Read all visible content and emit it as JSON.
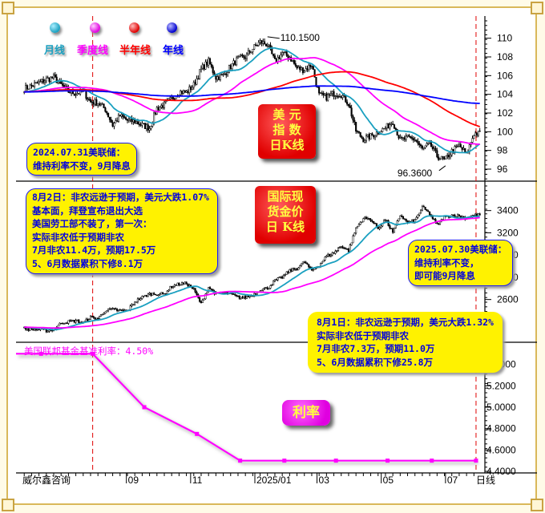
{
  "legend": [
    {
      "label": "月线",
      "color": "#1aa0c0"
    },
    {
      "label": "季度线",
      "color": "#ff00ff"
    },
    {
      "label": "半年线",
      "color": "#ff0000"
    },
    {
      "label": "年线",
      "color": "#0000ff"
    }
  ],
  "dxy_stamp": [
    "美  元",
    "指  数",
    "日K线"
  ],
  "gold_stamp": [
    "国际现",
    "货金价",
    "日 K线"
  ],
  "rate_stamp": "利率",
  "rate_title": "美国联邦基金基准利率：4.50%",
  "notes": {
    "fed_2024": [
      "2024.07.31美联储：",
      "维持利率不变，9月降息"
    ],
    "aug2": [
      "8月2日：非农远逊于预期，美元大跌1.07%",
      "基本面，拜登宣布退出大选",
      "美国劳工部不装了，第一次：",
      "实际非农低于预期非农",
      "7月非农11.4万，预期17.5万",
      "5、6月数据累积下修8.1万"
    ],
    "fed_2025": [
      "2025.07.30美联储：",
      "维持利率不变，",
      "即可能9月降息"
    ],
    "aug1": [
      "8月1日：非农远逊于预期，美元大跌1.32%",
      "实际非农低于预期非农",
      "7月非农7.3万，预期11.0万",
      "5、6月数据累积下修25.8万"
    ]
  },
  "footer": {
    "brand": "威尔鑫咨询",
    "period": "日线"
  },
  "colors": {
    "ma_month": "#1aa0c0",
    "ma_quarter": "#ff00ff",
    "ma_half": "#ff0000",
    "ma_year": "#0000ff",
    "rate": "#ff00ff",
    "event_line": "#e00000",
    "note_bg": "#fff200",
    "note_text": "#0000e0"
  },
  "chart_data": [
    {
      "type": "candlestick",
      "x_start": "2024-05-27",
      "x_step": "weekly",
      "weekly_close": [
        104.6,
        104.9,
        105.2,
        105.6,
        105.8,
        105.0,
        104.3,
        104.1,
        104.3,
        103.2,
        103.1,
        102.4,
        100.7,
        101.7,
        101.2,
        101.1,
        100.7,
        100.4,
        102.5,
        102.9,
        103.5,
        104.3,
        104.2,
        105.0,
        106.7,
        107.5,
        105.8,
        106.0,
        107.0,
        107.8,
        108.0,
        108.9,
        109.6,
        109.3,
        107.5,
        108.4,
        108.0,
        106.8,
        106.6,
        107.2,
        103.9,
        103.7,
        104.1,
        104.0,
        103.0,
        100.1,
        99.2,
        99.5,
        100.0,
        100.4,
        101.1,
        99.1,
        99.3,
        99.2,
        98.1,
        98.7,
        97.4,
        96.9,
        97.9,
        98.5,
        97.6,
        99.8
      ],
      "annotations": [
        {
          "text": "110.1500",
          "date": "2025-01-13",
          "value": 110.15
        },
        {
          "text": "96.3600",
          "date": "2025-07-01",
          "value": 96.36
        }
      ],
      "moving_averages": [
        "月线",
        "季度线",
        "半年线",
        "年线"
      ],
      "yticks": [
        96,
        98,
        100,
        102,
        104,
        106,
        108,
        110
      ],
      "ylim": [
        94.8,
        112.2
      ]
    },
    {
      "type": "candlestick",
      "x_start": "2024-05-27",
      "x_step": "weekly",
      "weekly_close": [
        2340,
        2330,
        2330,
        2320,
        2330,
        2390,
        2400,
        2410,
        2390,
        2440,
        2430,
        2500,
        2510,
        2500,
        2500,
        2580,
        2620,
        2650,
        2650,
        2650,
        2720,
        2740,
        2745,
        2690,
        2560,
        2710,
        2650,
        2660,
        2650,
        2620,
        2620,
        2640,
        2690,
        2700,
        2770,
        2800,
        2860,
        2880,
        2940,
        2860,
        2910,
        2990,
        3020,
        3080,
        3040,
        3240,
        3330,
        3320,
        3240,
        3320,
        3200,
        3360,
        3290,
        3310,
        3430,
        3370,
        3270,
        3340,
        3360,
        3350,
        3330,
        3360
      ],
      "moving_averages": [
        "月线",
        "季度线"
      ],
      "yticks": [
        2600,
        2800,
        3000,
        3200,
        3400
      ],
      "ylim": [
        2230,
        3650
      ]
    },
    {
      "type": "line",
      "x": [
        "2024-06-12",
        "2024-07-31",
        "2024-09-18",
        "2024-11-07",
        "2024-12-18",
        "2025-01-29",
        "2025-03-19",
        "2025-05-07",
        "2025-06-18",
        "2025-07-30"
      ],
      "y": [
        5.5,
        5.5,
        5.0,
        4.75,
        4.5,
        4.5,
        4.5,
        4.5,
        4.5,
        4.5
      ],
      "yticks": [
        "4.4000",
        "4.6000",
        "4.8000",
        "5.0000",
        "5.2000",
        "5.4000"
      ],
      "ylim": [
        4.4,
        5.6
      ]
    }
  ],
  "xaxis": {
    "ticks": [
      {
        "label": "09",
        "date": "2024-09-01"
      },
      {
        "label": "11",
        "date": "2024-11-01"
      },
      {
        "label": "2025/01",
        "date": "2025-01-01"
      },
      {
        "label": "03",
        "date": "2025-03-01"
      },
      {
        "label": "05",
        "date": "2025-05-01"
      },
      {
        "label": "07",
        "date": "2025-07-01"
      }
    ]
  },
  "event_dates": [
    "2024-07-31",
    "2025-07-30"
  ]
}
